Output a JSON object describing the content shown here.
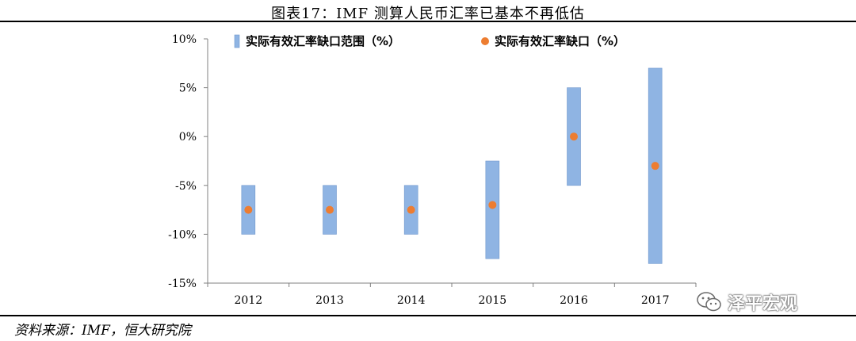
{
  "header": {
    "title": "图表17：IMF 测算人民币汇率已基本不再低估"
  },
  "footer": {
    "source": "资料来源：IMF，恒大研究院"
  },
  "watermark": {
    "text": "泽平宏观",
    "icon": "wechat-icon"
  },
  "colors": {
    "bar": "#8FB4E3",
    "bar_stroke": "#6F97CC",
    "dot": "#ED7D31",
    "axis": "#808080"
  },
  "chart_data": {
    "type": "floating-bar-with-point",
    "categories": [
      "2012",
      "2013",
      "2014",
      "2015",
      "2016",
      "2017"
    ],
    "series": [
      {
        "name": "实际有效汇率缺口范围（%）",
        "kind": "range",
        "low": [
          -10,
          -10,
          -10,
          -12.5,
          -5,
          -13
        ],
        "high": [
          -5,
          -5,
          -5,
          -2.5,
          5,
          7
        ]
      },
      {
        "name": "实际有效汇率缺口（%）",
        "kind": "point",
        "values": [
          -7.5,
          -7.5,
          -7.5,
          -7,
          0,
          -3
        ]
      }
    ],
    "ylim": [
      -15,
      10
    ],
    "yticks": [
      -15,
      -10,
      -5,
      0,
      5,
      10
    ],
    "ytick_labels": [
      "-15%",
      "-10%",
      "-5%",
      "0%",
      "5%",
      "10%"
    ],
    "legend_position": "top-left",
    "grid": false
  }
}
